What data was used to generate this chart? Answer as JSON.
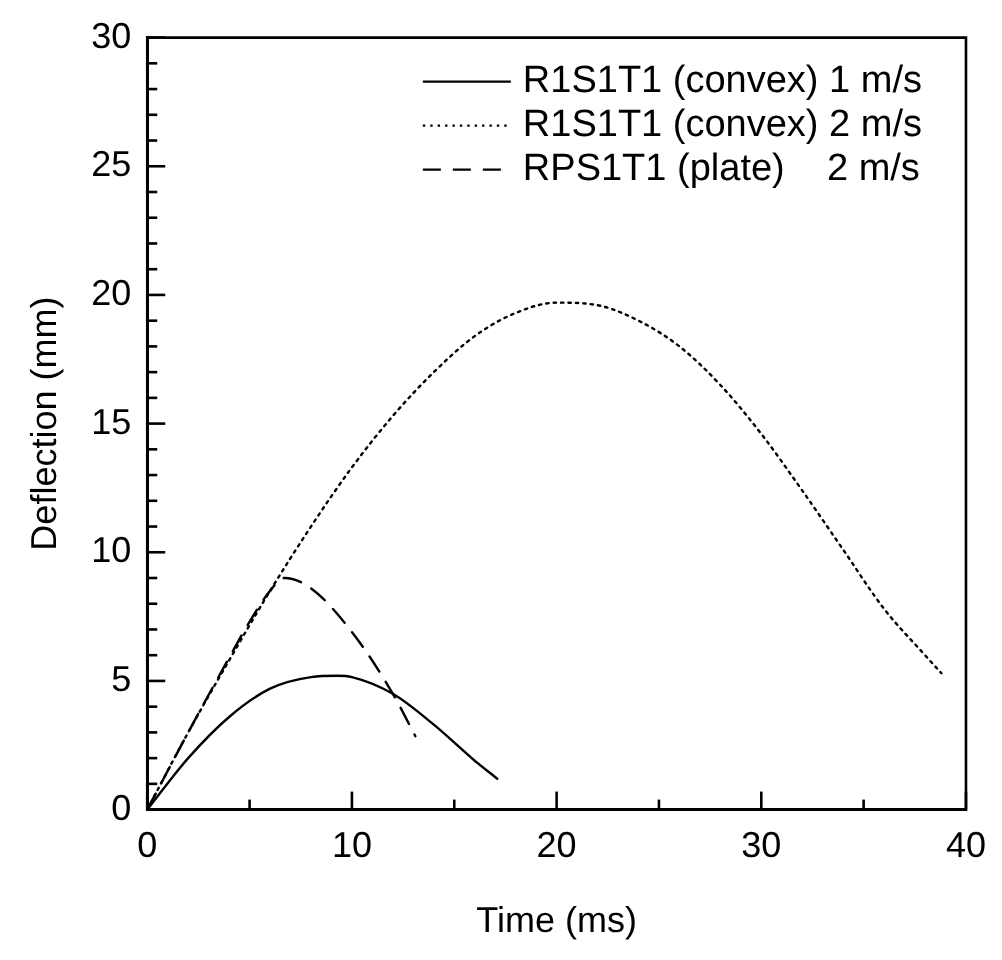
{
  "chart_data": {
    "type": "line",
    "xlabel": "Time (ms)",
    "ylabel": "Deflection (mm)",
    "xlim": [
      0,
      40
    ],
    "ylim": [
      0,
      30
    ],
    "xticks": [
      0,
      {
        "value": 5,
        "label": null
      },
      10,
      {
        "value": 15,
        "label": null
      },
      20,
      {
        "value": 25,
        "label": null
      },
      30,
      {
        "value": 35,
        "label": null
      },
      40
    ],
    "yticks": [
      0,
      {
        "value": 1,
        "label": null
      },
      {
        "value": 2,
        "label": null
      },
      {
        "value": 3,
        "label": null
      },
      {
        "value": 4,
        "label": null
      },
      5,
      {
        "value": 6,
        "label": null
      },
      {
        "value": 7,
        "label": null
      },
      {
        "value": 8,
        "label": null
      },
      {
        "value": 9,
        "label": null
      },
      10,
      {
        "value": 11,
        "label": null
      },
      {
        "value": 12,
        "label": null
      },
      {
        "value": 13,
        "label": null
      },
      {
        "value": 14,
        "label": null
      },
      15,
      {
        "value": 16,
        "label": null
      },
      {
        "value": 17,
        "label": null
      },
      {
        "value": 18,
        "label": null
      },
      {
        "value": 19,
        "label": null
      },
      20,
      {
        "value": 21,
        "label": null
      },
      {
        "value": 22,
        "label": null
      },
      {
        "value": 23,
        "label": null
      },
      {
        "value": 24,
        "label": null
      },
      25,
      {
        "value": 26,
        "label": null
      },
      {
        "value": 27,
        "label": null
      },
      {
        "value": 28,
        "label": null
      },
      {
        "value": 29,
        "label": null
      },
      30
    ],
    "grid": false,
    "legend": "top right",
    "marker": "none",
    "series": [
      {
        "name": "R1S1T1 (convex) 1 m/s",
        "color": "#000000",
        "line_style": "solid",
        "x": [
          0,
          2,
          4,
          6,
          8,
          9.3,
          10,
          12,
          14,
          16,
          17.1
        ],
        "values": [
          0,
          2,
          3.6,
          4.7,
          5.15,
          5.2,
          5.15,
          4.5,
          3.3,
          1.9,
          1.2
        ]
      },
      {
        "name": "R1S1T1 (convex) 2 m/s",
        "color": "#000000",
        "line_style": "dotted",
        "x": [
          0,
          2,
          4,
          6,
          8,
          10,
          12,
          14,
          16,
          18,
          20,
          22,
          24,
          26,
          28,
          30,
          32,
          34,
          36,
          38,
          38.8
        ],
        "values": [
          0,
          3,
          5.8,
          8.5,
          11,
          13.3,
          15.3,
          17,
          18.4,
          19.3,
          19.7,
          19.6,
          19,
          18,
          16.5,
          14.6,
          12.4,
          10.1,
          7.8,
          6,
          5.3
        ]
      },
      {
        "name": "RPS1T1 (plate)    2 m/s",
        "color": "#000000",
        "line_style": "dashed",
        "x": [
          0,
          2,
          4,
          5,
          6,
          6.7,
          8,
          10,
          12,
          13.1
        ],
        "values": [
          0,
          3,
          5.9,
          7.3,
          8.5,
          9,
          8.6,
          6.9,
          4.5,
          2.85
        ]
      }
    ]
  }
}
